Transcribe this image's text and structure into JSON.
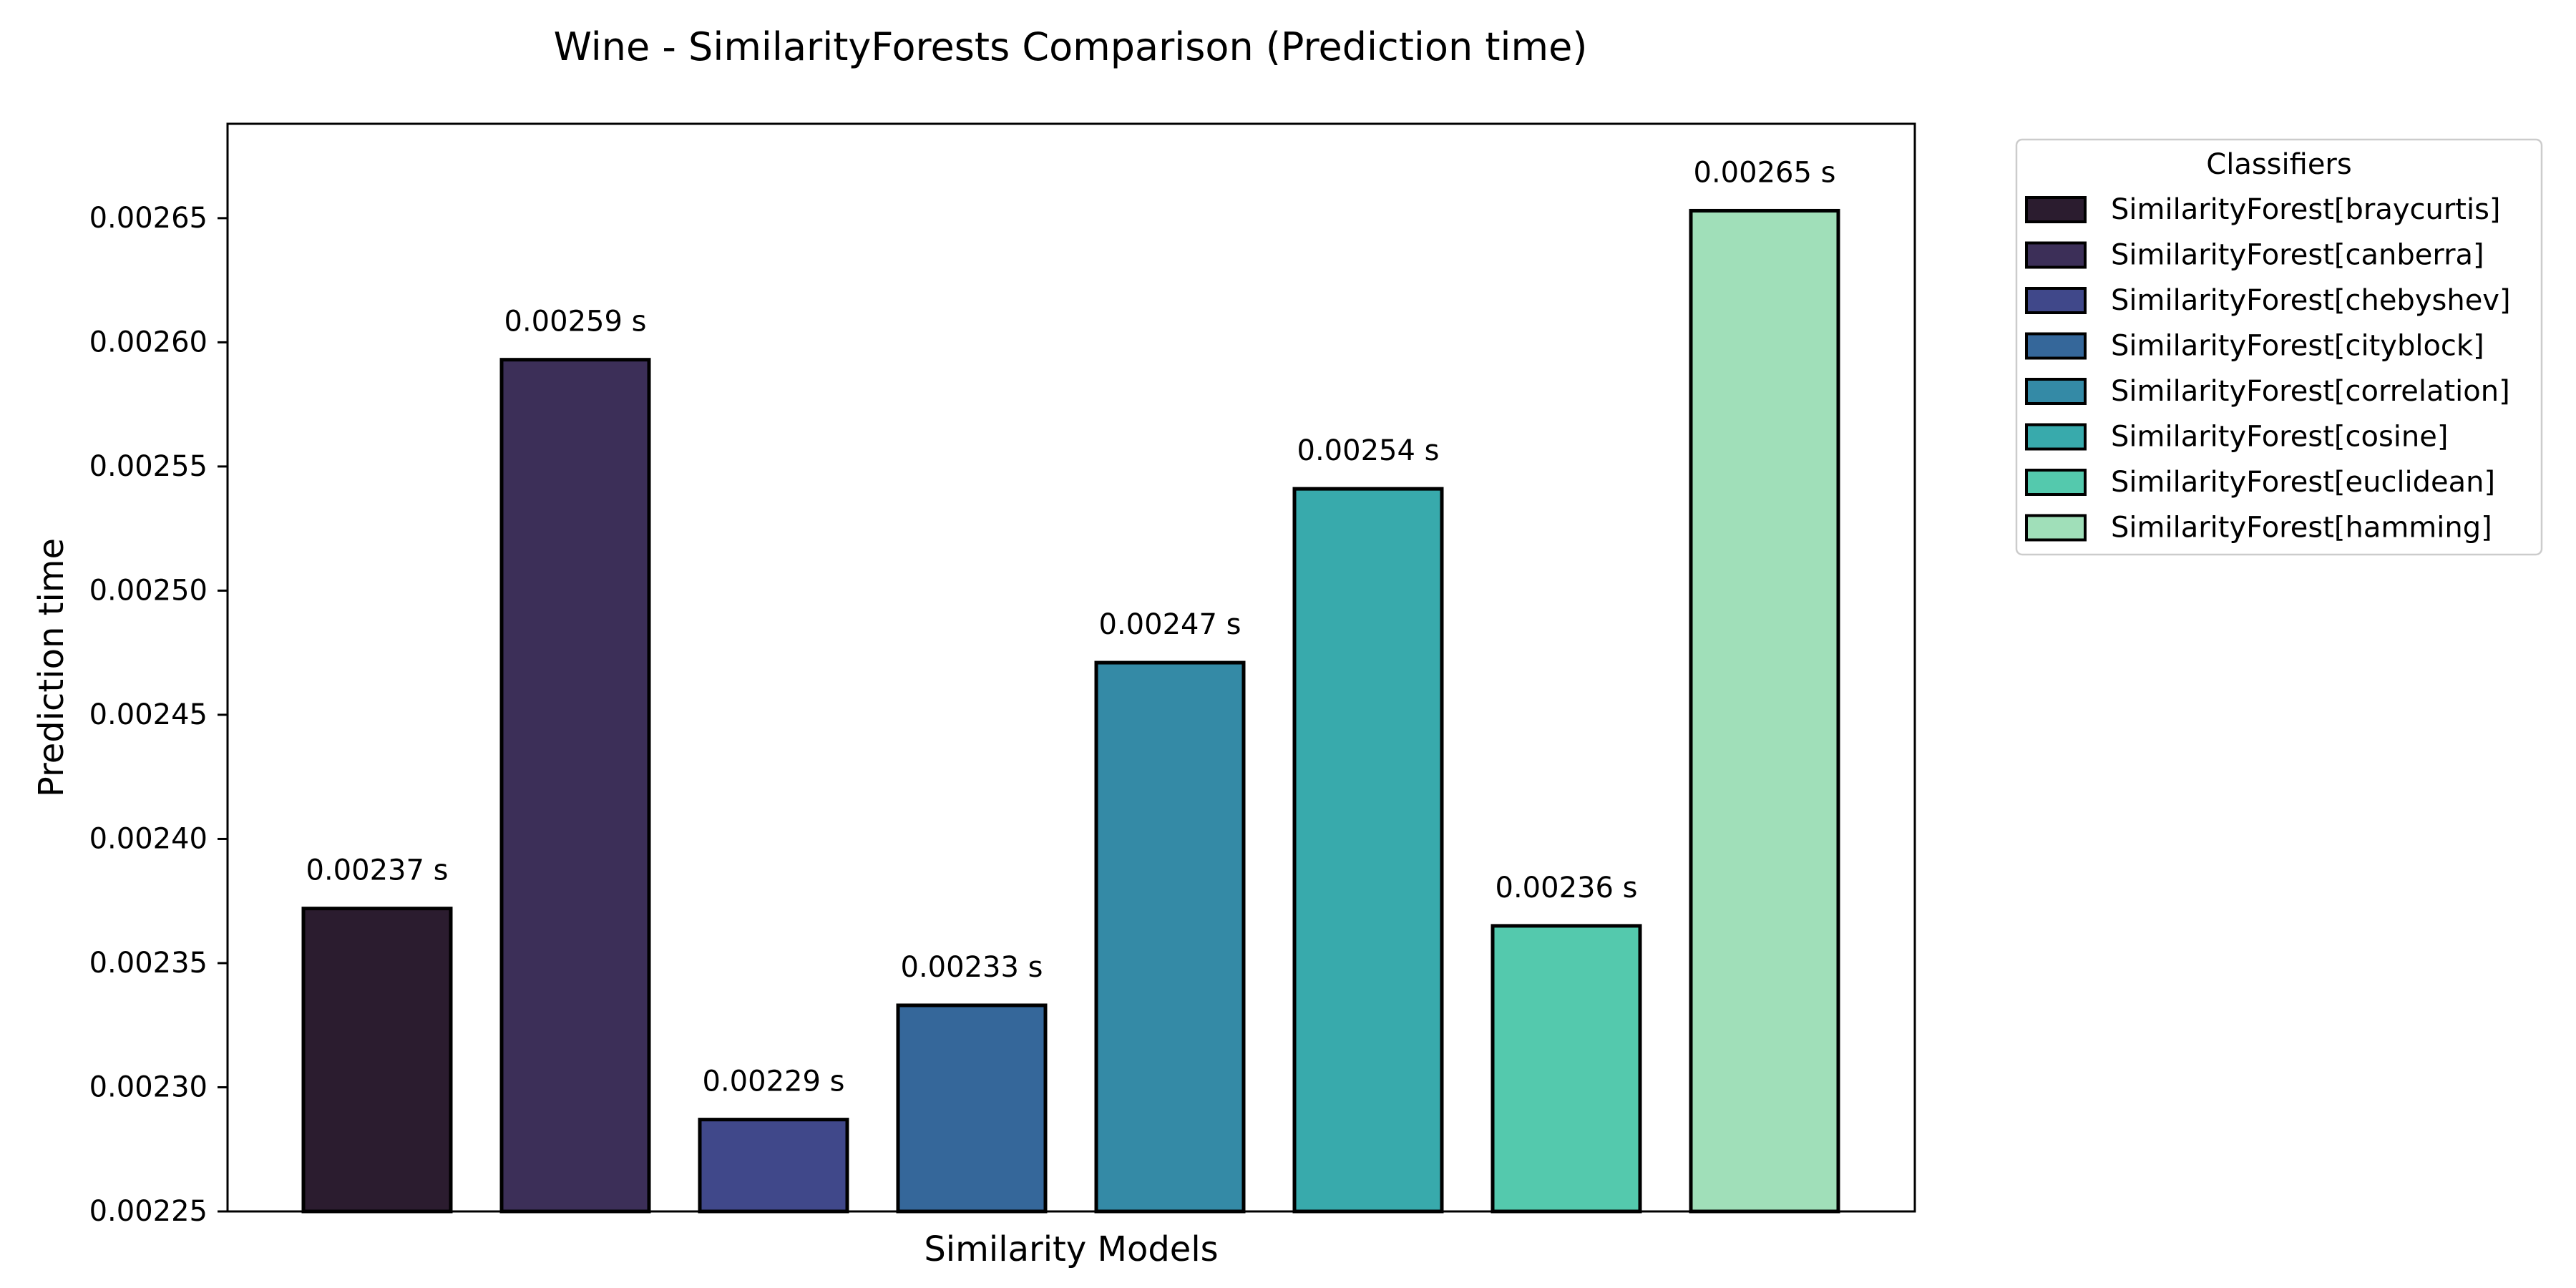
{
  "chart_data": {
    "type": "bar",
    "title": "Wine - SimilarityForests Comparison (Prediction time)",
    "xlabel": "Similarity Models",
    "ylabel": "Prediction time",
    "ylim": [
      0.00225,
      0.002688
    ],
    "yticks": [
      0.00225,
      0.0023,
      0.00235,
      0.0024,
      0.00245,
      0.0025,
      0.00255,
      0.0026,
      0.00265
    ],
    "ytick_labels": [
      "0.00225",
      "0.00230",
      "0.00235",
      "0.00240",
      "0.00245",
      "0.00250",
      "0.00255",
      "0.00260",
      "0.00265"
    ],
    "grid": false,
    "legend_title": "Classifiers",
    "legend_position": "outside-top-right",
    "bar_edge_color": "#000000",
    "categories": [
      "SimilarityForest[braycurtis]",
      "SimilarityForest[canberra]",
      "SimilarityForest[chebyshev]",
      "SimilarityForest[cityblock]",
      "SimilarityForest[correlation]",
      "SimilarityForest[cosine]",
      "SimilarityForest[euclidean]",
      "SimilarityForest[hamming]"
    ],
    "values": [
      0.002372,
      0.002593,
      0.002287,
      0.002333,
      0.002471,
      0.002541,
      0.002365,
      0.002653
    ],
    "value_labels": [
      "0.00237 s",
      "0.00259 s",
      "0.00229 s",
      "0.00233 s",
      "0.00247 s",
      "0.00254 s",
      "0.00236 s",
      "0.00265 s"
    ],
    "colors": [
      "#2b1c2f",
      "#3c2f58",
      "#40488a",
      "#35679a",
      "#348aa6",
      "#38aaac",
      "#54c9ad",
      "#a0dfb9"
    ]
  }
}
